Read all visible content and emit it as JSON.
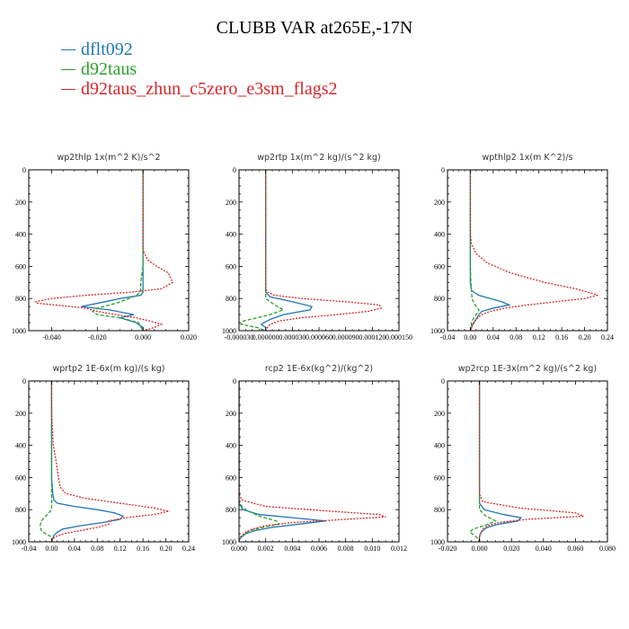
{
  "title": "CLUBB VAR at265E,-17N",
  "colors": {
    "dflt092": "#1f77b4",
    "d92taus": "#2ca02c",
    "zhun": "#d62728"
  },
  "legend": [
    {
      "label": "dflt092",
      "color": "#1f77b4"
    },
    {
      "label": "d92taus",
      "color": "#2ca02c"
    },
    {
      "label": "d92taus_zhun_c5zero_e3sm_flags2",
      "color": "#d62728"
    }
  ],
  "chart_data": [
    {
      "type": "line",
      "title": "wp2thlp   1x(m^2 K)/s^2",
      "xlim": [
        -0.05,
        0.02
      ],
      "ylim": [
        1000,
        0
      ],
      "xticks": [
        -0.04,
        -0.02,
        0.0,
        0.02
      ],
      "xtick_labels": [
        "-0.040",
        "-0.020",
        "0.000",
        "0.020"
      ],
      "yticks": [
        0,
        200,
        400,
        600,
        800,
        1000
      ],
      "ytick_labels": [
        "0",
        "200",
        "400",
        "600",
        "800",
        "1000"
      ],
      "series": [
        {
          "name": "dflt092",
          "dash": "solid",
          "p": [
            0,
            200,
            400,
            600,
            700,
            760,
            780,
            800,
            830,
            850,
            870,
            900,
            920,
            950,
            980,
            1000
          ],
          "x": [
            0.0,
            0.0,
            0.0,
            0.0,
            0.0,
            0.0,
            -0.001,
            -0.01,
            -0.02,
            -0.027,
            -0.015,
            -0.004,
            -0.01,
            -0.003,
            0.0,
            0.0
          ]
        },
        {
          "name": "d92taus",
          "dash": "dashed",
          "p": [
            0,
            200,
            400,
            600,
            700,
            760,
            780,
            800,
            830,
            860,
            880,
            900,
            920,
            950,
            1000
          ],
          "x": [
            0.0,
            0.0,
            0.0,
            0.0,
            -0.001,
            -0.001,
            -0.003,
            -0.006,
            -0.012,
            -0.02,
            -0.022,
            -0.02,
            -0.01,
            -0.002,
            0.0
          ]
        },
        {
          "name": "d92taus_zhun_c5zero_e3sm_flags2",
          "dash": "dotted",
          "p": [
            0,
            200,
            400,
            500,
            560,
            600,
            640,
            700,
            740,
            760,
            780,
            800,
            820,
            830,
            845,
            860,
            880,
            900,
            920,
            940,
            960,
            980,
            1000
          ],
          "x": [
            0.0,
            0.0,
            0.0,
            0.0,
            0.002,
            0.006,
            0.011,
            0.013,
            0.008,
            -0.005,
            -0.025,
            -0.04,
            -0.047,
            -0.046,
            -0.035,
            -0.025,
            -0.02,
            -0.012,
            -0.003,
            0.003,
            0.008,
            0.005,
            0.0
          ]
        }
      ]
    },
    {
      "type": "line",
      "title": "wp2rtp   1x(m^2 kg)/(s^2 kg)",
      "xlim": [
        -3e-05,
        0.00015
      ],
      "ylim": [
        1000,
        0
      ],
      "xticks": [
        -3e-05,
        0.0,
        3e-05,
        6e-05,
        9e-05,
        0.00012,
        0.00015
      ],
      "xtick_labels": [
        "-0.000030",
        "0.000000",
        "0.000030",
        "0.000060",
        "0.000090",
        "0.000120",
        "0.000150"
      ],
      "yticks": [
        0,
        200,
        400,
        600,
        800,
        1000
      ],
      "ytick_labels": [
        "0",
        "200",
        "400",
        "600",
        "800",
        "1000"
      ],
      "series": [
        {
          "name": "dflt092",
          "dash": "solid",
          "p": [
            0,
            200,
            400,
            600,
            700,
            760,
            790,
            820,
            850,
            870,
            900,
            930,
            960,
            980,
            1000
          ],
          "x": [
            0.0,
            0.0,
            0.0,
            0.0,
            0.0,
            0.0,
            5e-06,
            3e-05,
            5.2e-05,
            5e-05,
            2e-05,
            5e-06,
            -5e-06,
            0.0,
            0.0
          ]
        },
        {
          "name": "d92taus",
          "dash": "dashed",
          "p": [
            0,
            200,
            400,
            600,
            700,
            760,
            800,
            840,
            870,
            900,
            920,
            940,
            960,
            980,
            1000
          ],
          "x": [
            0.0,
            0.0,
            0.0,
            0.0,
            0.0,
            0.0,
            0.0,
            1e-05,
            2e-05,
            5e-06,
            -1e-05,
            -2.5e-05,
            -2.8e-05,
            -1e-05,
            0.0
          ]
        },
        {
          "name": "d92taus_zhun_c5zero_e3sm_flags2",
          "dash": "dotted",
          "p": [
            0,
            200,
            400,
            600,
            700,
            740,
            760,
            780,
            800,
            820,
            840,
            860,
            880,
            900,
            920,
            940,
            960,
            980,
            1000
          ],
          "x": [
            0.0,
            0.0,
            0.0,
            0.0,
            0.0,
            0.0,
            2e-06,
            1e-05,
            4e-05,
            9e-05,
            0.000128,
            0.00013,
            0.000115,
            8e-05,
            4e-05,
            1.5e-05,
            5e-06,
            2e-06,
            0.0
          ]
        }
      ]
    },
    {
      "type": "line",
      "title": "wpthlp2   1x(m K^2)/s",
      "xlim": [
        -0.04,
        0.24
      ],
      "ylim": [
        1000,
        0
      ],
      "xticks": [
        -0.04,
        0.0,
        0.04,
        0.08,
        0.12,
        0.16,
        0.2,
        0.24
      ],
      "xtick_labels": [
        "-0.04",
        "0.00",
        "0.04",
        "0.08",
        "0.12",
        "0.16",
        "0.20",
        "0.24"
      ],
      "yticks": [
        0,
        200,
        400,
        600,
        800,
        1000
      ],
      "ytick_labels": [
        "0",
        "200",
        "400",
        "600",
        "800",
        "1000"
      ],
      "series": [
        {
          "name": "dflt092",
          "dash": "solid",
          "p": [
            0,
            200,
            400,
            600,
            700,
            750,
            780,
            800,
            820,
            840,
            860,
            880,
            900,
            930,
            960,
            980,
            1000
          ],
          "x": [
            0.0,
            0.0,
            0.0,
            0.0,
            0.0,
            0.002,
            0.015,
            0.035,
            0.055,
            0.068,
            0.04,
            0.02,
            0.015,
            0.01,
            0.004,
            0.002,
            0.0
          ]
        },
        {
          "name": "d92taus",
          "dash": "dashed",
          "p": [
            0,
            200,
            400,
            600,
            700,
            800,
            840,
            870,
            890,
            920,
            950,
            980,
            1000
          ],
          "x": [
            0.0,
            0.0,
            0.0,
            0.0,
            0.001,
            0.003,
            0.008,
            0.015,
            0.012,
            0.006,
            0.002,
            0.001,
            0.0
          ]
        },
        {
          "name": "d92taus_zhun_c5zero_e3sm_flags2",
          "dash": "dotted",
          "p": [
            0,
            200,
            400,
            460,
            520,
            580,
            640,
            700,
            740,
            770,
            780,
            800,
            820,
            840,
            860,
            880,
            900,
            930,
            960,
            980,
            1000
          ],
          "x": [
            0.0,
            0.0,
            0.0,
            0.002,
            0.01,
            0.03,
            0.07,
            0.13,
            0.185,
            0.215,
            0.222,
            0.2,
            0.15,
            0.1,
            0.06,
            0.035,
            0.02,
            0.01,
            0.005,
            0.002,
            0.0
          ]
        }
      ]
    },
    {
      "type": "line",
      "title": "wprtp2   1E-6x(m kg)/(s kg)",
      "xlim": [
        -0.04,
        0.24
      ],
      "ylim": [
        1000,
        0
      ],
      "xticks": [
        -0.04,
        0.0,
        0.04,
        0.08,
        0.12,
        0.16,
        0.2,
        0.24
      ],
      "xtick_labels": [
        "-0.04",
        "0.00",
        "0.04",
        "0.08",
        "0.12",
        "0.16",
        "0.20",
        "0.24"
      ],
      "yticks": [
        0,
        200,
        400,
        600,
        800,
        1000
      ],
      "ytick_labels": [
        "0",
        "200",
        "400",
        "600",
        "800",
        "1000"
      ],
      "series": [
        {
          "name": "dflt092",
          "dash": "solid",
          "p": [
            0,
            200,
            400,
            600,
            700,
            740,
            760,
            780,
            800,
            820,
            840,
            860,
            880,
            900,
            920,
            940,
            960,
            980,
            1000
          ],
          "x": [
            0.0,
            0.0,
            0.0,
            0.0,
            0.002,
            0.004,
            0.01,
            0.04,
            0.08,
            0.11,
            0.125,
            0.12,
            0.09,
            0.05,
            0.02,
            0.01,
            0.004,
            0.002,
            0.0
          ]
        },
        {
          "name": "d92taus",
          "dash": "dashed",
          "p": [
            0,
            200,
            400,
            600,
            700,
            750,
            800,
            840,
            870,
            900,
            930,
            950,
            970,
            990,
            1000
          ],
          "x": [
            0.0,
            0.0,
            0.0,
            0.0,
            0.0,
            0.0,
            0.0,
            -0.01,
            -0.018,
            -0.02,
            -0.018,
            -0.01,
            0.0,
            0.001,
            0.0
          ]
        },
        {
          "name": "d92taus_zhun_c5zero_e3sm_flags2",
          "dash": "dotted",
          "p": [
            0,
            200,
            400,
            500,
            600,
            660,
            700,
            730,
            760,
            790,
            810,
            830,
            850,
            870,
            890,
            910,
            930,
            950,
            970,
            990,
            1000
          ],
          "x": [
            0.0,
            0.0,
            0.003,
            0.008,
            0.012,
            0.015,
            0.025,
            0.06,
            0.12,
            0.18,
            0.205,
            0.18,
            0.13,
            0.1,
            0.1,
            0.08,
            0.05,
            0.02,
            0.005,
            0.001,
            0.0
          ]
        }
      ]
    },
    {
      "type": "line",
      "title": "rcp2   1E-6x(kg^2)/(kg^2)",
      "xlim": [
        0.0,
        0.012
      ],
      "ylim": [
        1000,
        0
      ],
      "xticks": [
        0.0,
        0.002,
        0.004,
        0.006,
        0.008,
        0.01,
        0.012
      ],
      "xtick_labels": [
        "0.000",
        "0.002",
        "0.004",
        "0.006",
        "0.008",
        "0.010",
        "0.012"
      ],
      "yticks": [
        0,
        200,
        400,
        600,
        800,
        1000
      ],
      "ytick_labels": [
        "0",
        "200",
        "400",
        "600",
        "800",
        "1000"
      ],
      "series": [
        {
          "name": "dflt092",
          "dash": "solid",
          "p": [
            0,
            200,
            400,
            600,
            700,
            760,
            800,
            830,
            850,
            870,
            890,
            910,
            930,
            950,
            970,
            990,
            1000
          ],
          "x": [
            0.0,
            0.0,
            0.0,
            0.0,
            0.0,
            0.0,
            0.0003,
            0.0015,
            0.004,
            0.0065,
            0.0045,
            0.0025,
            0.0012,
            0.0005,
            0.0002,
            0.0,
            0.0
          ]
        },
        {
          "name": "d92taus",
          "dash": "dashed",
          "p": [
            0,
            200,
            400,
            600,
            700,
            760,
            800,
            840,
            870,
            890,
            910,
            930,
            960,
            990,
            1000
          ],
          "x": [
            0.0,
            0.0,
            0.0,
            0.0,
            0.0,
            0.0,
            0.0005,
            0.0015,
            0.0028,
            0.003,
            0.0018,
            0.0008,
            0.0003,
            0.0,
            0.0
          ]
        },
        {
          "name": "d92taus_zhun_c5zero_e3sm_flags2",
          "dash": "dotted",
          "p": [
            0,
            200,
            400,
            600,
            700,
            740,
            780,
            810,
            830,
            845,
            860,
            880,
            900,
            920,
            940,
            960,
            980,
            1000
          ],
          "x": [
            0.0,
            0.0,
            0.0,
            0.0,
            0.0,
            0.0002,
            0.002,
            0.007,
            0.0105,
            0.011,
            0.008,
            0.004,
            0.002,
            0.001,
            0.0005,
            0.0002,
            0.0,
            0.0
          ]
        }
      ]
    },
    {
      "type": "line",
      "title": "wp2rcp   1E-3x(m^2 kg)/(s^2 kg)",
      "xlim": [
        -0.02,
        0.08
      ],
      "ylim": [
        1000,
        0
      ],
      "xticks": [
        -0.02,
        0.0,
        0.02,
        0.04,
        0.06,
        0.08
      ],
      "xtick_labels": [
        "-0.020",
        "0.000",
        "0.020",
        "0.040",
        "0.060",
        "0.080"
      ],
      "yticks": [
        0,
        200,
        400,
        600,
        800,
        1000
      ],
      "ytick_labels": [
        "0",
        "200",
        "400",
        "600",
        "800",
        "1000"
      ],
      "series": [
        {
          "name": "dflt092",
          "dash": "solid",
          "p": [
            0,
            200,
            400,
            600,
            700,
            760,
            800,
            830,
            850,
            870,
            890,
            910,
            930,
            950,
            970,
            990,
            1000
          ],
          "x": [
            0.0,
            0.0,
            0.0,
            0.0,
            0.0,
            0.0,
            0.003,
            0.015,
            0.026,
            0.024,
            0.012,
            0.005,
            0.002,
            0.0005,
            0.0,
            0.0,
            0.0
          ]
        },
        {
          "name": "d92taus",
          "dash": "dashed",
          "p": [
            0,
            200,
            400,
            600,
            700,
            760,
            800,
            840,
            870,
            900,
            920,
            940,
            960,
            980,
            1000
          ],
          "x": [
            0.0,
            0.0,
            0.0,
            0.0,
            0.0,
            0.0,
            0.0,
            0.004,
            0.01,
            0.003,
            -0.004,
            -0.006,
            -0.003,
            -0.001,
            0.0
          ]
        },
        {
          "name": "d92taus_zhun_c5zero_e3sm_flags2",
          "dash": "dotted",
          "p": [
            0,
            200,
            400,
            600,
            700,
            750,
            790,
            820,
            840,
            860,
            880,
            900,
            920,
            940,
            960,
            980,
            1000
          ],
          "x": [
            0.0,
            0.0,
            0.0,
            0.0,
            0.0,
            0.002,
            0.025,
            0.06,
            0.065,
            0.03,
            0.012,
            0.005,
            0.002,
            0.001,
            0.0,
            0.0,
            0.0
          ]
        }
      ]
    }
  ]
}
